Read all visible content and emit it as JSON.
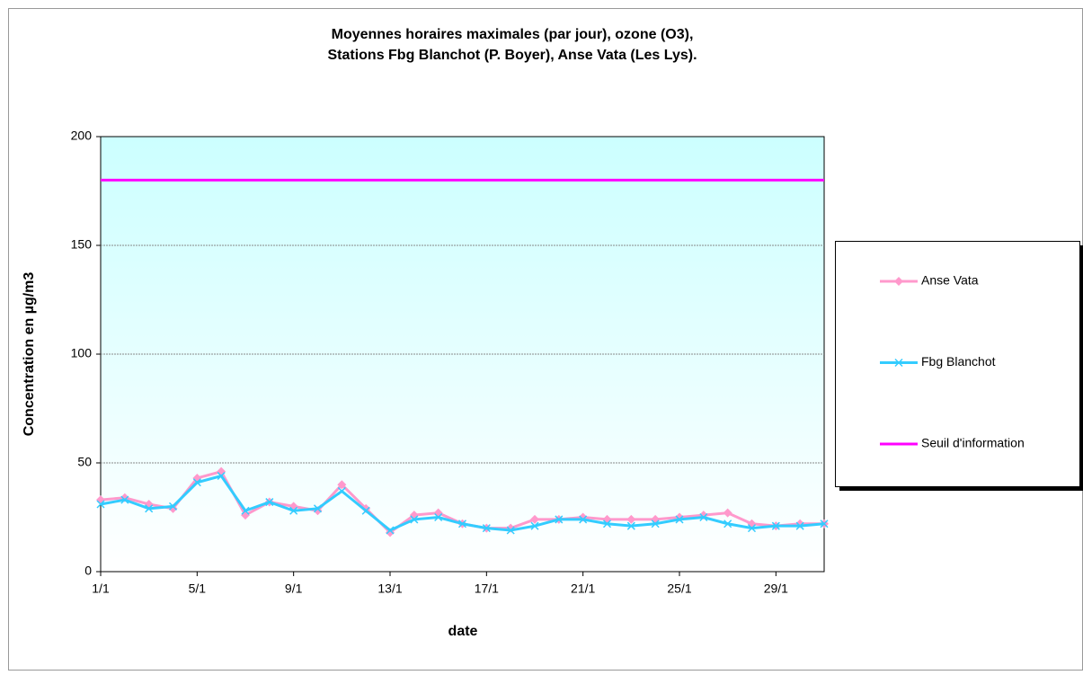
{
  "chart_data": {
    "type": "line",
    "title": [
      "Moyennes horaires maximales (par jour), ozone (O3),",
      "Stations Fbg Blanchot (P. Boyer), Anse Vata (Les Lys)."
    ],
    "y_label": "Concentration  en µg/m3",
    "x_label": "date",
    "categories": [
      "1/1",
      null,
      null,
      null,
      "5/1",
      null,
      null,
      null,
      "9/1",
      null,
      null,
      null,
      "13/1",
      null,
      null,
      null,
      "17/1",
      null,
      null,
      null,
      "21/1",
      null,
      null,
      null,
      "25/1",
      null,
      null,
      null,
      "29/1",
      null,
      null
    ],
    "series": [
      {
        "name": "Anse Vata",
        "color": "#ff99cc",
        "marker": "diamond",
        "values": [
          33,
          34,
          31,
          29,
          43,
          46,
          26,
          32,
          30,
          28,
          40,
          29,
          18,
          26,
          27,
          22,
          20,
          20,
          24,
          24,
          25,
          24,
          24,
          24,
          25,
          26,
          27,
          22,
          21,
          22,
          22
        ]
      },
      {
        "name": "Fbg Blanchot",
        "color": "#33ccff",
        "marker": "x",
        "values": [
          31,
          33,
          29,
          30,
          41,
          44,
          28,
          32,
          28,
          29,
          37,
          28,
          19,
          24,
          25,
          22,
          20,
          19,
          21,
          24,
          24,
          22,
          21,
          22,
          24,
          25,
          22,
          20,
          21,
          21,
          22
        ]
      },
      {
        "name": "Seuil d'information",
        "color": "#ff00ff",
        "marker": "none",
        "values": [
          180,
          180,
          180,
          180,
          180,
          180,
          180,
          180,
          180,
          180,
          180,
          180,
          180,
          180,
          180,
          180,
          180,
          180,
          180,
          180,
          180,
          180,
          180,
          180,
          180,
          180,
          180,
          180,
          180,
          180,
          180
        ]
      }
    ],
    "ylim": [
      0,
      200
    ],
    "yticks": [
      0,
      50,
      100,
      150,
      200
    ],
    "grid": true,
    "legend": "right"
  }
}
